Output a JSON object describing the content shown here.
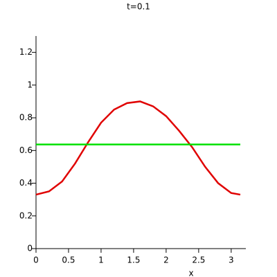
{
  "chart_data": {
    "type": "line",
    "title": "t=0.1",
    "x_label": "x",
    "series": [
      {
        "color": "#e00000",
        "x": [
          0,
          0.2,
          0.4,
          0.6,
          0.8,
          1.0,
          1.2,
          1.4,
          1.6,
          1.8,
          2.0,
          2.2,
          2.4,
          2.6,
          2.8,
          3.0,
          3.14
        ],
        "values": [
          0.33,
          0.35,
          0.41,
          0.52,
          0.65,
          0.77,
          0.85,
          0.89,
          0.9,
          0.87,
          0.81,
          0.72,
          0.62,
          0.5,
          0.4,
          0.34,
          0.33
        ]
      },
      {
        "color": "#00e000",
        "x": [
          0,
          3.14
        ],
        "values": [
          0.637,
          0.637
        ]
      }
    ],
    "xlim": [
      0,
      3.14
    ],
    "ylim": [
      0,
      1.3
    ],
    "xticks": [
      0,
      0.5,
      1,
      1.5,
      2,
      2.5,
      3
    ],
    "yticks": [
      0,
      0.2,
      0.4,
      0.6,
      0.8,
      1,
      1.2
    ]
  }
}
